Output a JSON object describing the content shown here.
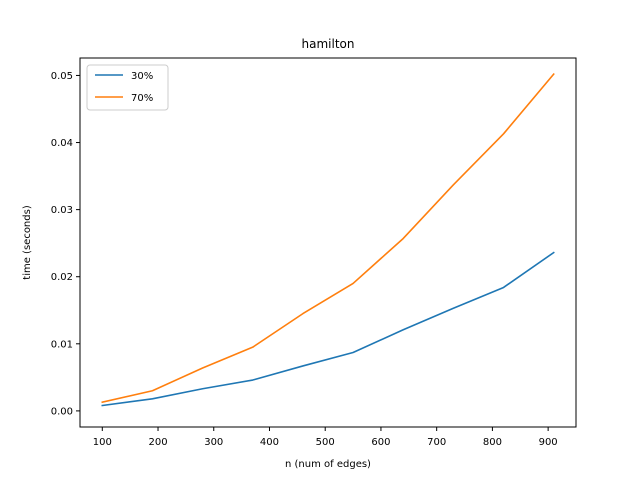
{
  "chart_data": {
    "type": "line",
    "title": "hamilton",
    "xlabel": "n (num of edges)",
    "ylabel": "time (seconds)",
    "xlim": [
      60,
      950
    ],
    "ylim": [
      -0.0024,
      0.0526
    ],
    "xticks": [
      100,
      200,
      300,
      400,
      500,
      600,
      700,
      800,
      900
    ],
    "xtick_labels": [
      "100",
      "200",
      "300",
      "400",
      "500",
      "600",
      "700",
      "800",
      "900"
    ],
    "yticks": [
      0.0,
      0.01,
      0.02,
      0.03,
      0.04,
      0.05
    ],
    "ytick_labels": [
      "0.00",
      "0.01",
      "0.02",
      "0.03",
      "0.04",
      "0.05"
    ],
    "grid": false,
    "legend_position": "top-left",
    "x": [
      100,
      190,
      280,
      370,
      460,
      550,
      640,
      730,
      820,
      910
    ],
    "series": [
      {
        "name": "30%",
        "color": "#1f77b4",
        "values": [
          0.0008,
          0.0018,
          0.0033,
          0.0046,
          0.0067,
          0.0087,
          0.0121,
          0.0153,
          0.0184,
          0.0236
        ]
      },
      {
        "name": "70%",
        "color": "#ff7f0e",
        "values": [
          0.0013,
          0.003,
          0.0064,
          0.0095,
          0.0145,
          0.019,
          0.0257,
          0.0337,
          0.0413,
          0.0502
        ]
      }
    ]
  }
}
